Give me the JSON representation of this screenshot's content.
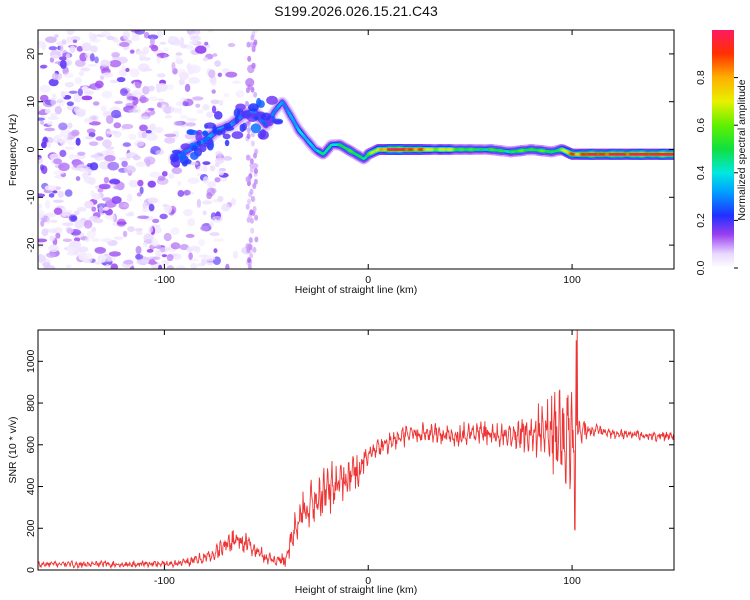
{
  "title": "S199.2026.026.15.21.C43",
  "colors": {
    "snr_line": "#ee3333",
    "ridge_core": "#ff0000",
    "noise": "#8a2be2",
    "frame": "#000000"
  },
  "chart_data": [
    {
      "type": "heatmap",
      "xlabel": "Height of straight line (km)",
      "ylabel": "Frequency (Hz)",
      "xlim": [
        -162,
        150
      ],
      "ylim": [
        -25,
        25
      ],
      "xticks": [
        -100,
        0,
        100
      ],
      "yticks": [
        -20,
        -10,
        0,
        10,
        20
      ],
      "xtick_labels": [
        "-100",
        "0",
        "100"
      ],
      "ytick_labels": [
        "-20",
        "-10",
        "0",
        "10",
        "20"
      ],
      "grid": false,
      "colormap": "rainbow",
      "colorbar": {
        "label": "Normalized spectral amplitude",
        "range": [
          0,
          1
        ],
        "ticks": [
          0.0,
          0.2,
          0.4,
          0.6,
          0.8
        ],
        "tick_labels": [
          "0.0",
          "0.2",
          "0.4",
          "0.6",
          "0.8"
        ]
      },
      "ridge": {
        "x": [
          -95,
          -88,
          -80,
          -74,
          -68,
          -62,
          -56,
          -50,
          -46,
          -42,
          -38,
          -34,
          -30,
          -26,
          -22,
          -18,
          -14,
          -10,
          -6,
          -2,
          0,
          5,
          10,
          20,
          30,
          40,
          50,
          60,
          70,
          80,
          90,
          95,
          100,
          110,
          120,
          130,
          140,
          150
        ],
        "freq": [
          -2,
          0,
          2,
          4,
          5,
          7,
          8,
          5,
          8,
          10,
          7,
          4,
          2,
          0,
          -1,
          1,
          1,
          0,
          -1,
          -2,
          -1,
          0,
          0,
          0,
          0,
          0,
          0,
          0,
          -0.5,
          0,
          -0.5,
          0,
          -1,
          -1,
          -1,
          -1,
          -1,
          -1
        ],
        "amplitude": [
          0.25,
          0.3,
          0.3,
          0.35,
          0.3,
          0.3,
          0.3,
          0.3,
          0.3,
          0.3,
          0.35,
          0.35,
          0.35,
          0.4,
          0.45,
          0.4,
          0.5,
          0.5,
          0.5,
          0.5,
          0.55,
          0.7,
          1.0,
          0.95,
          0.7,
          0.65,
          0.5,
          0.5,
          0.5,
          0.55,
          0.5,
          0.6,
          0.85,
          0.95,
          0.95,
          1.0,
          1.0,
          1.0
        ]
      }
    },
    {
      "type": "line",
      "xlabel": "Height of straight line (km)",
      "ylabel": "SNR (10 * v/v)",
      "xlim": [
        -162,
        150
      ],
      "ylim": [
        0,
        1150
      ],
      "xticks": [
        -100,
        0,
        100
      ],
      "yticks": [
        0,
        200,
        400,
        600,
        800,
        1000
      ],
      "xtick_labels": [
        "-100",
        "0",
        "100"
      ],
      "ytick_labels": [
        "0",
        "200",
        "400",
        "600",
        "800",
        "1000"
      ],
      "grid": false,
      "series": [
        {
          "x": [
            -162,
            -150,
            -140,
            -130,
            -120,
            -110,
            -100,
            -90,
            -80,
            -75,
            -70,
            -65,
            -60,
            -55,
            -50,
            -45,
            -40,
            -35,
            -30,
            -25,
            -20,
            -15,
            -10,
            -5,
            0,
            5,
            10,
            20,
            30,
            40,
            50,
            60,
            70,
            80,
            85,
            90,
            95,
            100,
            103,
            110,
            120,
            130,
            140,
            150
          ],
          "y": [
            25,
            30,
            25,
            30,
            25,
            30,
            30,
            35,
            60,
            80,
            120,
            150,
            130,
            90,
            60,
            45,
            60,
            220,
            300,
            330,
            380,
            420,
            450,
            480,
            540,
            580,
            610,
            650,
            660,
            640,
            660,
            650,
            640,
            660,
            680,
            650,
            640,
            620,
            680,
            670,
            650,
            650,
            640,
            645
          ],
          "spread": [
            20,
            20,
            18,
            20,
            18,
            20,
            20,
            25,
            40,
            50,
            60,
            70,
            70,
            50,
            40,
            30,
            60,
            120,
            140,
            150,
            160,
            140,
            130,
            120,
            80,
            70,
            60,
            60,
            60,
            70,
            70,
            70,
            70,
            120,
            180,
            250,
            300,
            320,
            100,
            40,
            30,
            30,
            30,
            30
          ]
        }
      ]
    }
  ]
}
